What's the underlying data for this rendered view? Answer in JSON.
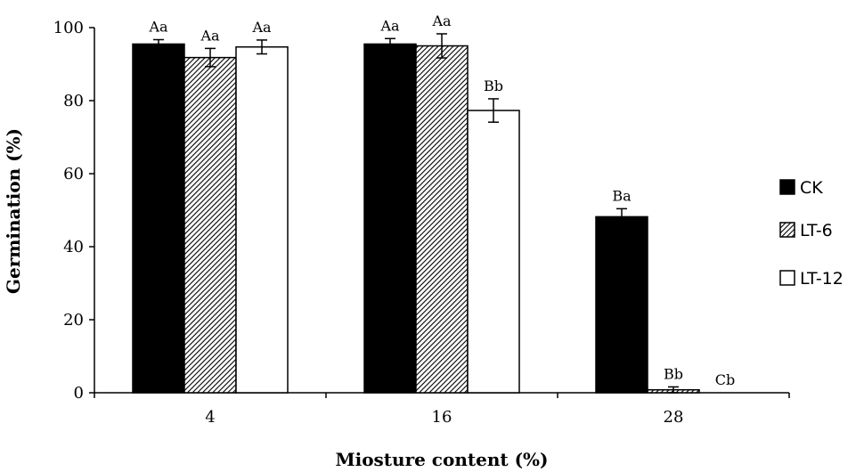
{
  "chart_data": {
    "type": "bar",
    "xlabel": "Miosture content (%)",
    "ylabel": "Germination (%)",
    "ylim": [
      0,
      100
    ],
    "yticks": [
      0,
      20,
      40,
      60,
      80,
      100
    ],
    "categories": [
      "4",
      "16",
      "28"
    ],
    "grid": false,
    "legend_position": "right",
    "series": [
      {
        "name": "CK",
        "pattern": "solid",
        "color": "#000000",
        "values": [
          95.5,
          95.5,
          48.2
        ],
        "errors": [
          1.2,
          1.5,
          2.2
        ],
        "labels": [
          "Aa",
          "Aa",
          "Ba"
        ]
      },
      {
        "name": "LT-6",
        "pattern": "hatch",
        "color": "#000000",
        "values": [
          91.8,
          95.0,
          0.8
        ],
        "errors": [
          2.5,
          3.3,
          0.8
        ],
        "labels": [
          "Aa",
          "Aa",
          "Bb"
        ]
      },
      {
        "name": "LT-12",
        "pattern": "white",
        "color": "#ffffff",
        "values": [
          94.7,
          77.3,
          0
        ],
        "errors": [
          1.9,
          3.2,
          0
        ],
        "labels": [
          "Aa",
          "Bb",
          "Cb"
        ]
      }
    ]
  }
}
